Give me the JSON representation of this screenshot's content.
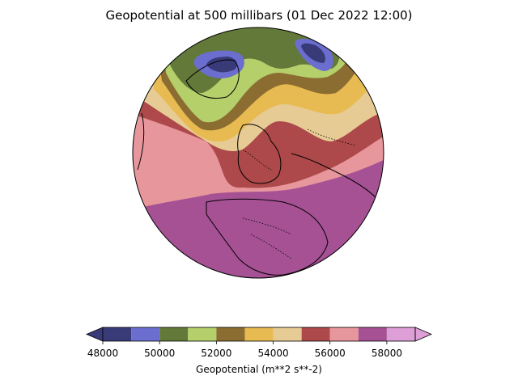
{
  "title": "Geopotential at 500 millibars (01 Dec 2022  12:00)",
  "colorbar": {
    "label": "Geopotential (m**2 s**-2)",
    "levels": [
      48000,
      49000,
      50000,
      51000,
      52000,
      53000,
      54000,
      55000,
      56000,
      57000,
      58000,
      59000
    ],
    "colors": [
      "#393b79",
      "#6b6ecf",
      "#637939",
      "#b5cf6b",
      "#8c6d31",
      "#e7ba52",
      "#e7cb94",
      "#ad494a",
      "#e7969c",
      "#a55194",
      "#de9ed6"
    ],
    "under_color": "#393b79",
    "over_color": "#de9ed6",
    "extend": "both",
    "ticks": [
      {
        "value": 48000,
        "label": "48000"
      },
      {
        "value": 50000,
        "label": "50000"
      },
      {
        "value": 52000,
        "label": "52000"
      },
      {
        "value": 54000,
        "label": "54000"
      },
      {
        "value": 56000,
        "label": "56000"
      },
      {
        "value": 58000,
        "label": "58000"
      }
    ]
  },
  "map": {
    "projection": "orthographic",
    "coastlines": true,
    "borders": "dotted"
  }
}
